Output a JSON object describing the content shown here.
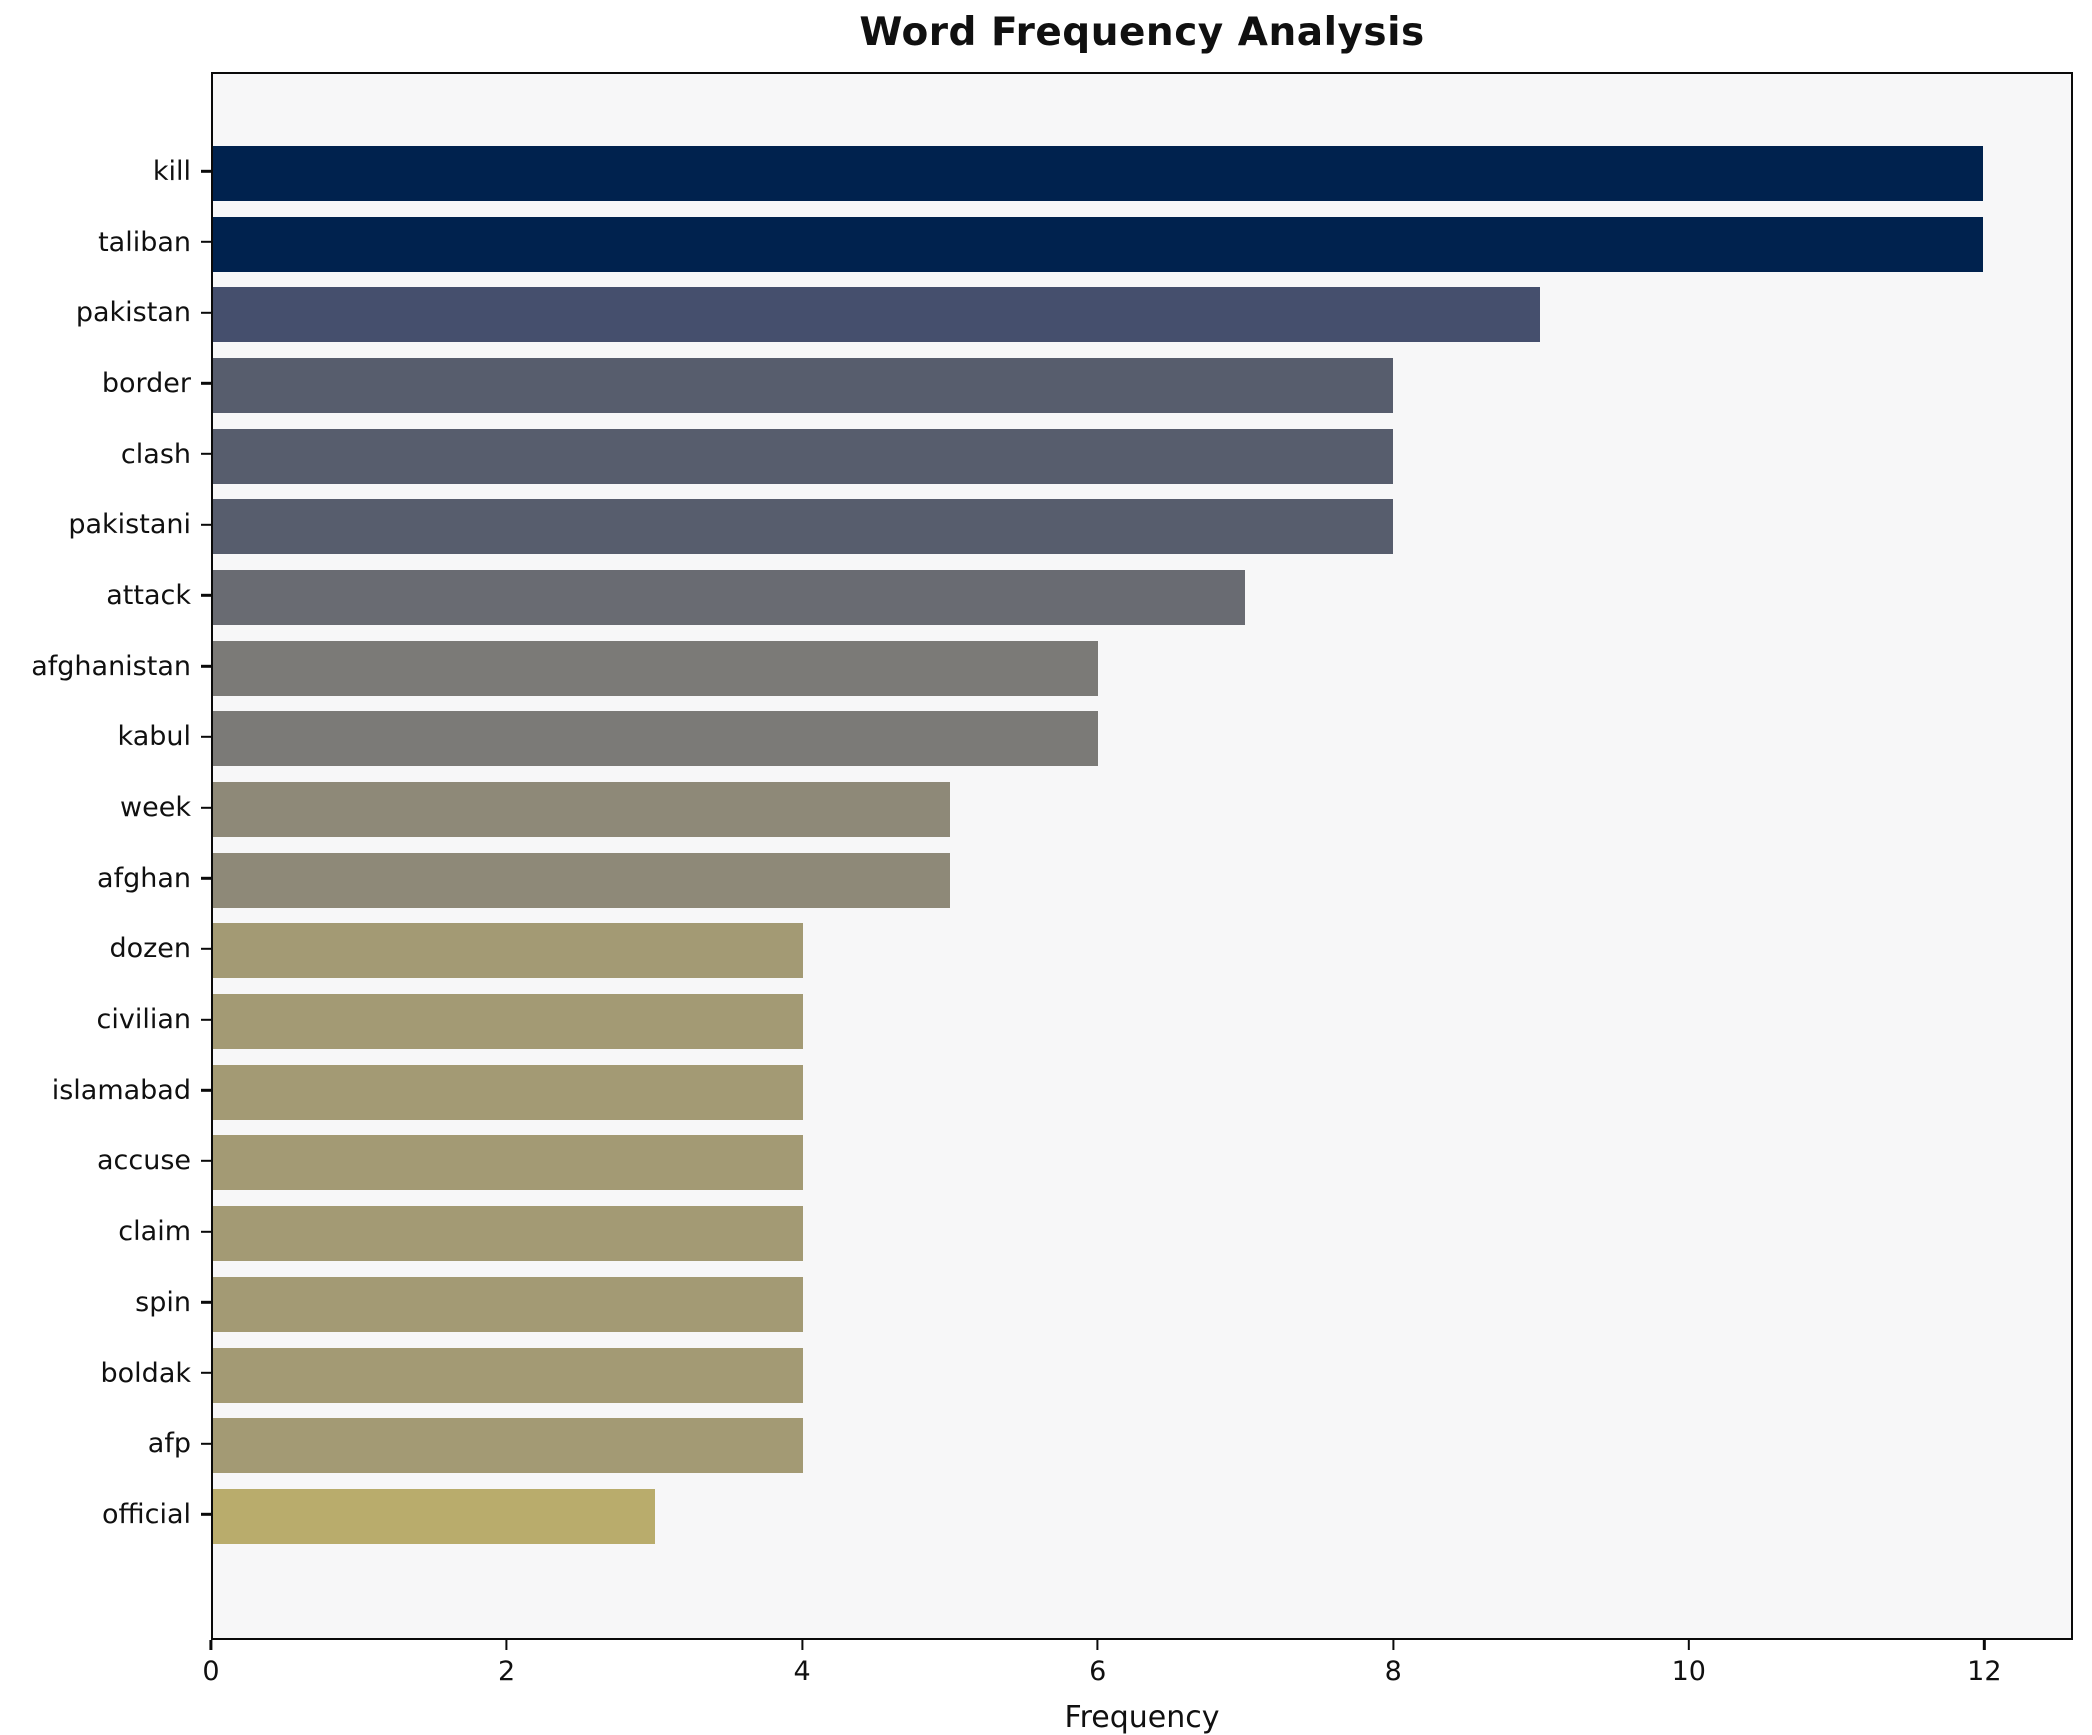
{
  "title": "Word Frequency Analysis",
  "xlabel": "Frequency",
  "chart_data": {
    "type": "bar",
    "orientation": "horizontal",
    "title": "Word Frequency Analysis",
    "xlabel": "Frequency",
    "ylabel": "",
    "categories": [
      "kill",
      "taliban",
      "pakistan",
      "border",
      "clash",
      "pakistani",
      "attack",
      "afghanistan",
      "kabul",
      "week",
      "afghan",
      "dozen",
      "civilian",
      "islamabad",
      "accuse",
      "claim",
      "spin",
      "boldak",
      "afp",
      "official"
    ],
    "values": [
      12,
      12,
      9,
      8,
      8,
      8,
      7,
      6,
      6,
      5,
      5,
      4,
      4,
      4,
      4,
      4,
      4,
      4,
      4,
      3
    ],
    "bar_colors": [
      "#00224e",
      "#00224e",
      "#454f6d",
      "#575d6d",
      "#575d6d",
      "#575d6d",
      "#696b72",
      "#7b7a77",
      "#7b7a77",
      "#8e8978",
      "#8e8978",
      "#a39a74",
      "#a39a74",
      "#a39a74",
      "#a39a74",
      "#a39a74",
      "#a39a74",
      "#a39a74",
      "#a39a74",
      "#b9ac6c"
    ],
    "xticks": [
      0,
      2,
      4,
      6,
      8,
      10,
      12
    ],
    "xlim": [
      0,
      12.6
    ],
    "grid": false,
    "legend": null,
    "axes_background": "#f7f7f8",
    "figure_background": "#ffffff",
    "spine_color": "#0a0a0a"
  }
}
